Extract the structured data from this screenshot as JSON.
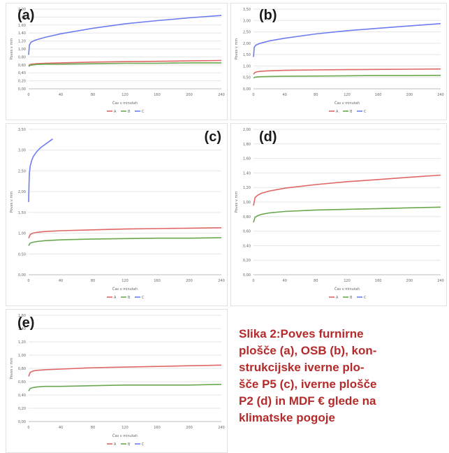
{
  "panels": [
    {
      "label": "(a)",
      "chart_data": {
        "type": "line",
        "xlabel": "Čas v minutah",
        "ylabel": "Poves v mm",
        "xlim": [
          0,
          240
        ],
        "ylim": [
          0,
          2.0
        ],
        "xticks": [
          "0",
          "40",
          "80",
          "120",
          "160",
          "200",
          "240"
        ],
        "yticks": [
          "0,00",
          "0,20",
          "0,40",
          "0,60",
          "0,80",
          "1,00",
          "1,20",
          "1,40",
          "1,60",
          "1,80",
          "2,00"
        ],
        "grid": true,
        "legend": "bottom",
        "series": [
          {
            "name": "A",
            "color": "#e06666",
            "x": [
              0,
              2,
              5,
              10,
              20,
              40,
              80,
              120,
              160,
              200,
              240
            ],
            "y": [
              0.58,
              0.61,
              0.62,
              0.63,
              0.64,
              0.65,
              0.67,
              0.68,
              0.69,
              0.7,
              0.71
            ]
          },
          {
            "name": "B",
            "color": "#6aa84f",
            "x": [
              0,
              2,
              5,
              10,
              20,
              40,
              80,
              120,
              160,
              200,
              240
            ],
            "y": [
              0.56,
              0.59,
              0.6,
              0.61,
              0.62,
              0.62,
              0.63,
              0.64,
              0.64,
              0.65,
              0.65
            ]
          },
          {
            "name": "C",
            "color": "#6d7df0",
            "x": [
              0,
              1,
              3,
              8,
              20,
              40,
              80,
              120,
              160,
              200,
              240
            ],
            "y": [
              0.85,
              1.1,
              1.17,
              1.22,
              1.29,
              1.38,
              1.52,
              1.63,
              1.71,
              1.78,
              1.84
            ]
          }
        ]
      }
    },
    {
      "label": "(b)",
      "chart_data": {
        "type": "line",
        "xlabel": "Čas v minutah",
        "ylabel": "Poves v mm",
        "xlim": [
          0,
          240
        ],
        "ylim": [
          0,
          3.5
        ],
        "xticks": [
          "0",
          "40",
          "80",
          "120",
          "160",
          "200",
          "240"
        ],
        "yticks": [
          "0,00",
          "0,50",
          "1,00",
          "1,50",
          "2,00",
          "2,50",
          "3,00",
          "3,50"
        ],
        "grid": true,
        "legend": "bottom",
        "series": [
          {
            "name": "A",
            "color": "#e06666",
            "x": [
              0,
              2,
              5,
              10,
              20,
              40,
              80,
              120,
              160,
              200,
              240
            ],
            "y": [
              0.64,
              0.72,
              0.75,
              0.77,
              0.79,
              0.81,
              0.83,
              0.84,
              0.85,
              0.86,
              0.87
            ]
          },
          {
            "name": "B",
            "color": "#6aa84f",
            "x": [
              0,
              2,
              5,
              10,
              20,
              40,
              80,
              120,
              160,
              200,
              240
            ],
            "y": [
              0.47,
              0.51,
              0.52,
              0.53,
              0.54,
              0.55,
              0.56,
              0.57,
              0.58,
              0.58,
              0.59
            ]
          },
          {
            "name": "C",
            "color": "#6d7df0",
            "x": [
              0,
              1,
              3,
              8,
              20,
              40,
              80,
              120,
              160,
              200,
              240
            ],
            "y": [
              1.4,
              1.82,
              1.92,
              1.99,
              2.1,
              2.22,
              2.41,
              2.55,
              2.66,
              2.76,
              2.86
            ]
          }
        ]
      }
    },
    {
      "label": "(c)",
      "chart_data": {
        "type": "line",
        "xlabel": "Čas v minutah",
        "ylabel": "Poves v mm",
        "xlim": [
          0,
          240
        ],
        "ylim": [
          0,
          3.5
        ],
        "xticks": [
          "0",
          "40",
          "80",
          "120",
          "160",
          "200",
          "240"
        ],
        "yticks": [
          "0,00",
          "0,50",
          "1,00",
          "1,50",
          "2,00",
          "2,50",
          "3,00",
          "3,50"
        ],
        "grid": true,
        "legend": "bottom",
        "series": [
          {
            "name": "A",
            "color": "#e06666",
            "x": [
              0,
              2,
              5,
              10,
              20,
              40,
              80,
              120,
              160,
              200,
              240
            ],
            "y": [
              0.88,
              0.97,
              1.0,
              1.02,
              1.04,
              1.06,
              1.08,
              1.1,
              1.11,
              1.12,
              1.13
            ]
          },
          {
            "name": "B",
            "color": "#6aa84f",
            "x": [
              0,
              2,
              5,
              10,
              20,
              40,
              80,
              120,
              160,
              200,
              240
            ],
            "y": [
              0.7,
              0.76,
              0.78,
              0.8,
              0.82,
              0.84,
              0.86,
              0.87,
              0.88,
              0.88,
              0.89
            ]
          },
          {
            "name": "C",
            "color": "#6d7df0",
            "x": [
              0,
              0.5,
              1,
              2,
              4,
              6,
              10,
              15,
              20,
              25,
              30
            ],
            "y": [
              1.75,
              2.2,
              2.45,
              2.62,
              2.76,
              2.85,
              2.96,
              3.06,
              3.13,
              3.2,
              3.27
            ]
          }
        ]
      }
    },
    {
      "label": "(d)",
      "chart_data": {
        "type": "line",
        "xlabel": "Čas v minutah",
        "ylabel": "Poves v mm",
        "xlim": [
          0,
          240
        ],
        "ylim": [
          0,
          2.0
        ],
        "xticks": [
          "0",
          "40",
          "80",
          "120",
          "160",
          "200",
          "240"
        ],
        "yticks": [
          "0,00",
          "0,20",
          "0,40",
          "0,60",
          "0,80",
          "1,00",
          "1,20",
          "1,40",
          "1,60",
          "1,80",
          "2,00"
        ],
        "grid": true,
        "legend": "bottom",
        "series": [
          {
            "name": "A",
            "color": "#e06666",
            "x": [
              0,
              2,
              5,
              10,
              20,
              40,
              80,
              120,
              160,
              200,
              240
            ],
            "y": [
              0.95,
              1.06,
              1.09,
              1.12,
              1.15,
              1.19,
              1.24,
              1.28,
              1.31,
              1.34,
              1.37
            ]
          },
          {
            "name": "B",
            "color": "#6aa84f",
            "x": [
              0,
              2,
              5,
              10,
              20,
              40,
              80,
              120,
              160,
              200,
              240
            ],
            "y": [
              0.72,
              0.79,
              0.81,
              0.83,
              0.85,
              0.87,
              0.89,
              0.9,
              0.91,
              0.92,
              0.93
            ]
          }
        ]
      }
    },
    {
      "label": "(e)",
      "chart_data": {
        "type": "line",
        "xlabel": "Čas v minutah",
        "ylabel": "Poves v mm",
        "xlim": [
          0,
          240
        ],
        "ylim": [
          0,
          1.6
        ],
        "xticks": [
          "0",
          "40",
          "80",
          "120",
          "160",
          "200",
          "240"
        ],
        "yticks": [
          "0,00",
          "0,20",
          "0,40",
          "0,60",
          "0,80",
          "1,00",
          "1,20",
          "1,40",
          "1,60"
        ],
        "grid": true,
        "legend": "bottom",
        "series": [
          {
            "name": "A",
            "color": "#e06666",
            "x": [
              0,
              2,
              5,
              10,
              20,
              40,
              80,
              120,
              160,
              200,
              240
            ],
            "y": [
              0.68,
              0.74,
              0.76,
              0.77,
              0.78,
              0.79,
              0.81,
              0.82,
              0.83,
              0.84,
              0.85
            ]
          },
          {
            "name": "B",
            "color": "#6aa84f",
            "x": [
              0,
              2,
              5,
              10,
              20,
              40,
              80,
              120,
              160,
              200,
              240
            ],
            "y": [
              0.46,
              0.5,
              0.51,
              0.52,
              0.53,
              0.53,
              0.54,
              0.55,
              0.55,
              0.55,
              0.56
            ]
          }
        ]
      }
    }
  ],
  "legend_labels": [
    "A",
    "B",
    "C"
  ],
  "caption": [
    "Slika 2:Poves furnirne",
    "plošče (a), OSB (b), kon-",
    "strukcijske iverne plo-",
    "šče P5 (c), iverne plošče",
    "P2 (d) in MDF € glede na",
    "klimatske pogoje"
  ]
}
